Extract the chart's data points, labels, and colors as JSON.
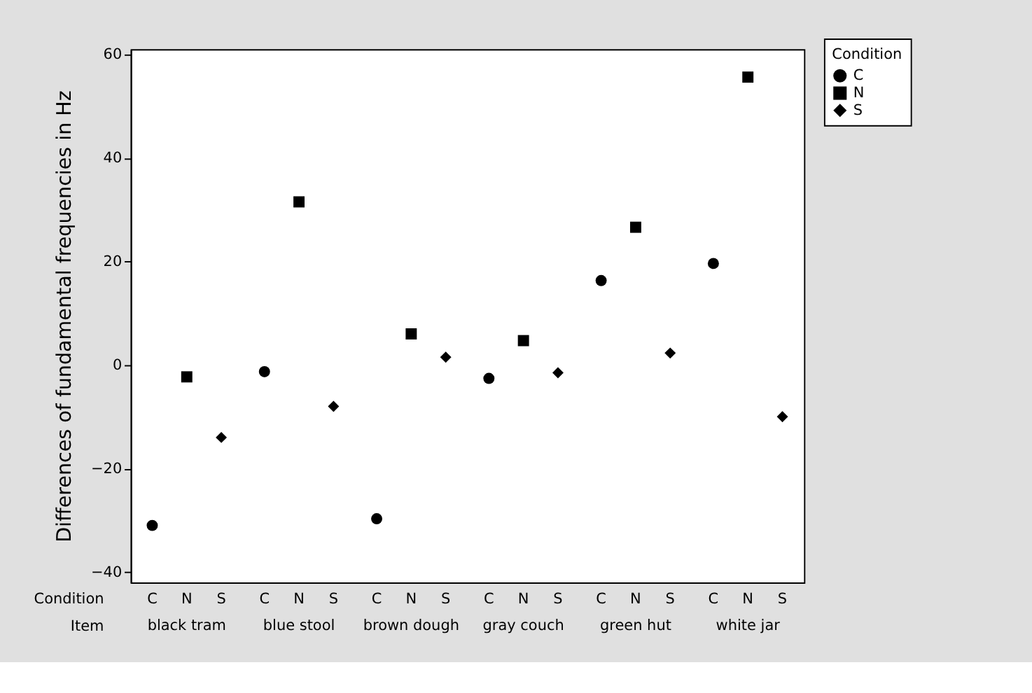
{
  "chart_data": {
    "type": "scatter",
    "ylabel": "Differences of fundamental frequencies in Hz",
    "xlabel": "Item",
    "legend_title": "Condition",
    "categories": [
      "black tram",
      "blue stool",
      "brown dough",
      "gray couch",
      "green hut",
      "white jar"
    ],
    "series": [
      {
        "name": "C",
        "color": "#000000",
        "marker": "circle",
        "values": [
          -31,
          -1.3,
          -29.7,
          -2.6,
          16.3,
          19.6
        ]
      },
      {
        "name": "N",
        "color": "#000000",
        "marker": "square",
        "values": [
          -2.3,
          31.5,
          6,
          4.7,
          26.6,
          55.6
        ]
      },
      {
        "name": "S",
        "color": "#000000",
        "marker": "diamond",
        "values": [
          -14,
          -8,
          1.5,
          -1.5,
          2.3,
          -10
        ]
      }
    ],
    "ylim": [
      -42,
      61
    ],
    "yticks": [
      -40,
      -20,
      0,
      20,
      40,
      60
    ],
    "grid": false,
    "legend": "top right"
  }
}
